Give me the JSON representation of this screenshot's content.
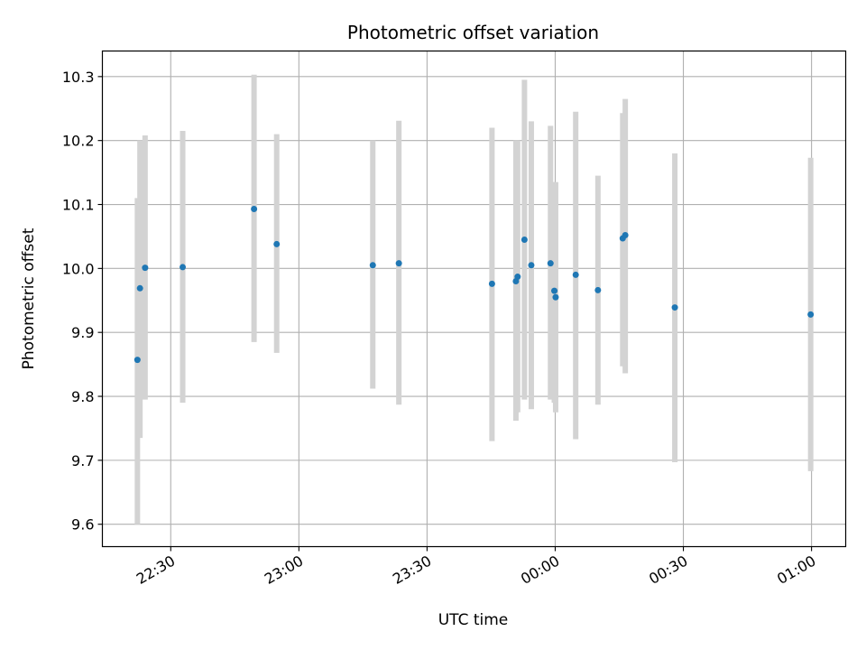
{
  "chart_data": {
    "type": "scatter",
    "title": "Photometric offset variation",
    "xlabel": "UTC time",
    "ylabel": "Photometric offset",
    "grid": true,
    "legend": "none",
    "marker_color": "#1f77b4",
    "errorbar_color": "#d3d3d3",
    "xlim": [
      "2000-01-01T22:14:00",
      "2000-01-02T01:08:00"
    ],
    "ylim": [
      9.565,
      10.34
    ],
    "xticks": [
      {
        "value": "2000-01-01T22:30:00",
        "label": "22:30"
      },
      {
        "value": "2000-01-01T23:00:00",
        "label": "23:00"
      },
      {
        "value": "2000-01-01T23:30:00",
        "label": "23:30"
      },
      {
        "value": "2000-01-02T00:00:00",
        "label": "00:00"
      },
      {
        "value": "2000-01-02T00:30:00",
        "label": "00:30"
      },
      {
        "value": "2000-01-02T01:00:00",
        "label": "01:00"
      }
    ],
    "yticks": [
      9.6,
      9.7,
      9.8,
      9.9,
      10.0,
      10.1,
      10.2,
      10.3
    ],
    "points": [
      {
        "x": "2000-01-01T22:22:12",
        "y": 9.857,
        "ylow": 9.6,
        "yhigh": 10.11
      },
      {
        "x": "2000-01-01T22:22:48",
        "y": 9.969,
        "ylow": 9.735,
        "yhigh": 10.2
      },
      {
        "x": "2000-01-01T22:24:00",
        "y": 10.001,
        "ylow": 9.795,
        "yhigh": 10.208
      },
      {
        "x": "2000-01-01T22:32:48",
        "y": 10.002,
        "ylow": 9.79,
        "yhigh": 10.215
      },
      {
        "x": "2000-01-01T22:49:30",
        "y": 10.093,
        "ylow": 9.885,
        "yhigh": 10.303
      },
      {
        "x": "2000-01-01T22:54:48",
        "y": 10.038,
        "ylow": 9.868,
        "yhigh": 10.21
      },
      {
        "x": "2000-01-01T23:17:18",
        "y": 10.005,
        "ylow": 9.812,
        "yhigh": 10.2
      },
      {
        "x": "2000-01-01T23:23:24",
        "y": 10.008,
        "ylow": 9.787,
        "yhigh": 10.231
      },
      {
        "x": "2000-01-01T23:45:12",
        "y": 9.976,
        "ylow": 9.73,
        "yhigh": 10.22
      },
      {
        "x": "2000-01-01T23:50:48",
        "y": 9.98,
        "ylow": 9.762,
        "yhigh": 10.2
      },
      {
        "x": "2000-01-01T23:51:12",
        "y": 9.987,
        "ylow": 9.775,
        "yhigh": 10.2
      },
      {
        "x": "2000-01-01T23:52:48",
        "y": 10.045,
        "ylow": 9.795,
        "yhigh": 10.295
      },
      {
        "x": "2000-01-01T23:54:24",
        "y": 10.005,
        "ylow": 9.78,
        "yhigh": 10.23
      },
      {
        "x": "2000-01-01T23:58:54",
        "y": 10.008,
        "ylow": 9.795,
        "yhigh": 10.223
      },
      {
        "x": "2000-01-01T23:59:48",
        "y": 9.965,
        "ylow": 9.79,
        "yhigh": 10.135
      },
      {
        "x": "2000-01-02T00:00:06",
        "y": 9.955,
        "ylow": 9.775,
        "yhigh": 10.135
      },
      {
        "x": "2000-01-02T00:04:48",
        "y": 9.99,
        "ylow": 9.733,
        "yhigh": 10.245
      },
      {
        "x": "2000-01-02T00:10:00",
        "y": 9.966,
        "ylow": 9.787,
        "yhigh": 10.145
      },
      {
        "x": "2000-01-02T00:15:48",
        "y": 10.047,
        "ylow": 9.847,
        "yhigh": 10.243
      },
      {
        "x": "2000-01-02T00:16:24",
        "y": 10.052,
        "ylow": 9.836,
        "yhigh": 10.265
      },
      {
        "x": "2000-01-02T00:28:00",
        "y": 9.939,
        "ylow": 9.697,
        "yhigh": 10.18
      },
      {
        "x": "2000-01-02T00:59:48",
        "y": 9.928,
        "ylow": 9.683,
        "yhigh": 10.173
      }
    ]
  }
}
